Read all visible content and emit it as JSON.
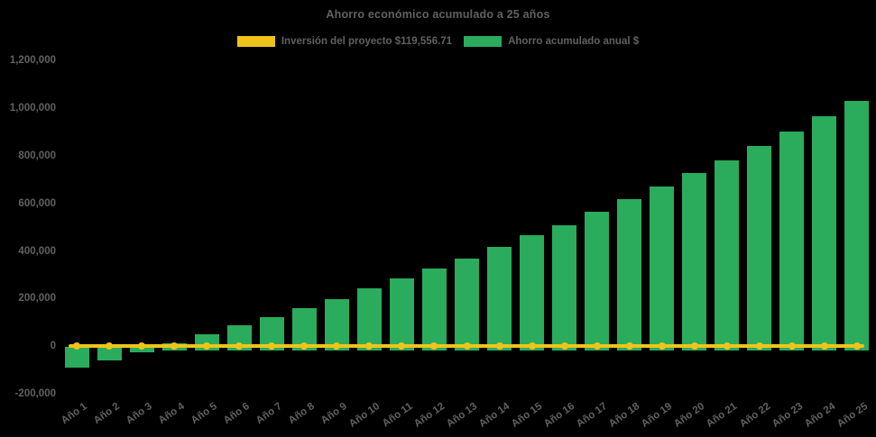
{
  "page": {
    "background": "#000000",
    "text_color": "#616161"
  },
  "chart_data": {
    "type": "bar",
    "title": "Ahorro económico acumulado a 25 años",
    "categories": [
      "Año 1",
      "Año 2",
      "Año 3",
      "Año 4",
      "Año 5",
      "Año 6",
      "Año 7",
      "Año 8",
      "Año 9",
      "Año 10",
      "Año 11",
      "Año 12",
      "Año 13",
      "Año 14",
      "Año 15",
      "Año 16",
      "Año 17",
      "Año 18",
      "Año 19",
      "Año 20",
      "Año 21",
      "Año 22",
      "Año 23",
      "Año 24",
      "Año 25"
    ],
    "series": [
      {
        "name": "Inversión del proyecto $119,556.71",
        "type": "line",
        "color": "#EDC41A",
        "marker": "circle",
        "values": [
          0,
          0,
          0,
          0,
          0,
          0,
          0,
          0,
          0,
          0,
          0,
          0,
          0,
          0,
          0,
          0,
          0,
          0,
          0,
          0,
          0,
          0,
          0,
          0,
          0
        ]
      },
      {
        "name": "Ahorro acumulado anual $",
        "type": "bar",
        "color": "#2BAB5C",
        "values": [
          -90000,
          -58000,
          -27000,
          12000,
          49000,
          87000,
          122000,
          160000,
          196000,
          243000,
          286000,
          326000,
          369000,
          419000,
          465000,
          509000,
          565000,
          616000,
          672000,
          726000,
          779000,
          840000,
          902000,
          965000,
          1030000
        ]
      }
    ],
    "xlabel": "",
    "ylabel": "",
    "ylim": [
      -200000,
      1200000
    ],
    "ytick_step": 200000,
    "grid": false,
    "legend_position": "top-center",
    "x_tick_rotation_deg": -35
  }
}
